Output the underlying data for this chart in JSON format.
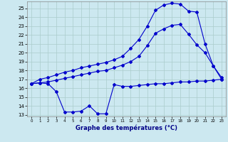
{
  "xlabel": "Graphe des températures (°C)",
  "bg_color": "#cce8f0",
  "grid_color": "#aacccc",
  "line_color": "#0000cc",
  "xlim": [
    -0.5,
    23.5
  ],
  "ylim": [
    12.8,
    25.8
  ],
  "yticks": [
    13,
    14,
    15,
    16,
    17,
    18,
    19,
    20,
    21,
    22,
    23,
    24,
    25
  ],
  "xticks": [
    0,
    1,
    2,
    3,
    4,
    5,
    6,
    7,
    8,
    9,
    10,
    11,
    12,
    13,
    14,
    15,
    16,
    17,
    18,
    19,
    20,
    21,
    22,
    23
  ],
  "series1_x": [
    0,
    1,
    2,
    3,
    4,
    5,
    6,
    7,
    8,
    9,
    10,
    11,
    12,
    13,
    14,
    15,
    16,
    17,
    18,
    19,
    20,
    21,
    22,
    23
  ],
  "series1_y": [
    16.5,
    17.0,
    17.2,
    17.5,
    17.8,
    18.0,
    18.3,
    18.5,
    18.7,
    18.9,
    19.2,
    19.6,
    20.5,
    21.5,
    23.0,
    24.8,
    25.4,
    25.6,
    25.5,
    24.7,
    24.6,
    21.0,
    18.5,
    17.0
  ],
  "series2_x": [
    0,
    1,
    2,
    3,
    4,
    5,
    6,
    7,
    8,
    9,
    10,
    11,
    12,
    13,
    14,
    15,
    16,
    17,
    18,
    19,
    20,
    21,
    22,
    23
  ],
  "series2_y": [
    16.5,
    16.6,
    16.7,
    16.9,
    17.1,
    17.3,
    17.5,
    17.7,
    17.9,
    18.0,
    18.3,
    18.6,
    19.0,
    19.6,
    20.8,
    22.2,
    22.7,
    23.1,
    23.2,
    22.1,
    20.9,
    20.0,
    18.5,
    17.2
  ],
  "series3_x": [
    0,
    1,
    2,
    3,
    4,
    5,
    6,
    7,
    8,
    9,
    10,
    11,
    12,
    13,
    14,
    15,
    16,
    17,
    18,
    19,
    20,
    21,
    22,
    23
  ],
  "series3_y": [
    16.5,
    16.6,
    16.5,
    15.6,
    13.3,
    13.3,
    13.4,
    14.0,
    13.1,
    13.1,
    16.4,
    16.2,
    16.2,
    16.3,
    16.4,
    16.5,
    16.5,
    16.6,
    16.7,
    16.7,
    16.8,
    16.8,
    16.9,
    17.0
  ]
}
